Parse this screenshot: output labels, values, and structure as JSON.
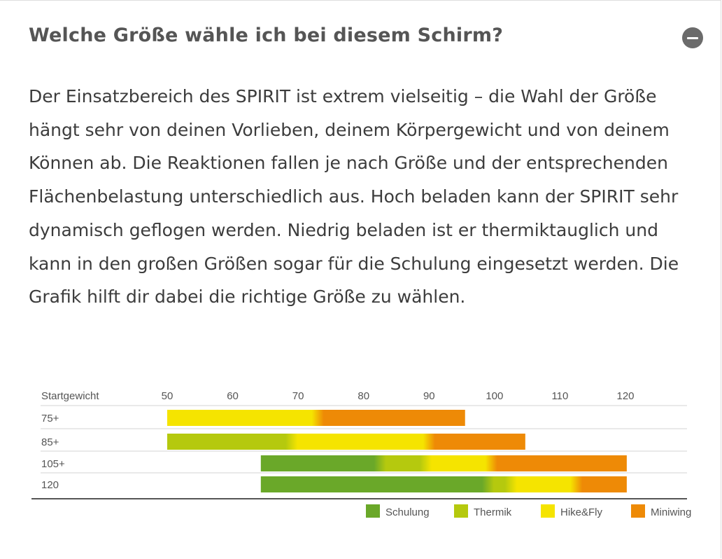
{
  "faq": {
    "title": "Welche Größe wähle ich bei diesem Schirm?",
    "collapse_icon": "minus-circle-icon",
    "body": "Der Einsatzbereich des SPIRIT ist extrem vielseitig – die Wahl der Größe hängt sehr von deinen Vorlieben, deinem Körpergewicht und von deinem Können ab. Die Reaktionen fallen je nach Größe und der entsprechenden Flächenbelastung unterschiedlich aus. Hoch beladen kann der SPIRIT sehr dynamisch geflogen werden. Niedrig beladen ist er thermiktauglich und kann in den großen Größen sogar für die Schulung eingesetzt werden. Die Grafik hilft dir dabei die richtige Größe zu wählen."
  },
  "chart_data": {
    "type": "bar",
    "orientation": "horizontal-stacked-range",
    "xlabel": "Startgewicht",
    "xlim": [
      50,
      120
    ],
    "xticks": [
      50,
      60,
      70,
      80,
      90,
      100,
      110,
      120
    ],
    "grid": false,
    "legend_position": "bottom-right",
    "legend": [
      {
        "name": "Schulung",
        "color": "#6aa829"
      },
      {
        "name": "Thermik",
        "color": "#b5c90e"
      },
      {
        "name": "Hike&Fly",
        "color": "#f5e400"
      },
      {
        "name": "Miniwing",
        "color": "#ee8a06"
      }
    ],
    "rows": [
      {
        "label": "75+",
        "segments": [
          {
            "category": "Hike&Fly",
            "from": 50,
            "to": 73
          },
          {
            "category": "Miniwing",
            "from": 73,
            "to": 95.5
          }
        ]
      },
      {
        "label": "85+",
        "segments": [
          {
            "category": "Thermik",
            "from": 50,
            "to": 69
          },
          {
            "category": "Hike&Fly",
            "from": 69,
            "to": 90
          },
          {
            "category": "Miniwing",
            "from": 90,
            "to": 104.7
          }
        ]
      },
      {
        "label": "105+",
        "segments": [
          {
            "category": "Schulung",
            "from": 64.3,
            "to": 82.5
          },
          {
            "category": "Thermik",
            "from": 82.5,
            "to": 89.5
          },
          {
            "category": "Hike&Fly",
            "from": 89.5,
            "to": 99.5
          },
          {
            "category": "Miniwing",
            "from": 99.5,
            "to": 120.2
          }
        ]
      },
      {
        "label": "120",
        "segments": [
          {
            "category": "Schulung",
            "from": 64.3,
            "to": 99
          },
          {
            "category": "Thermik",
            "from": 99,
            "to": 102.5
          },
          {
            "category": "Hike&Fly",
            "from": 102.5,
            "to": 112.5
          },
          {
            "category": "Miniwing",
            "from": 112.5,
            "to": 120.2
          }
        ]
      }
    ]
  }
}
